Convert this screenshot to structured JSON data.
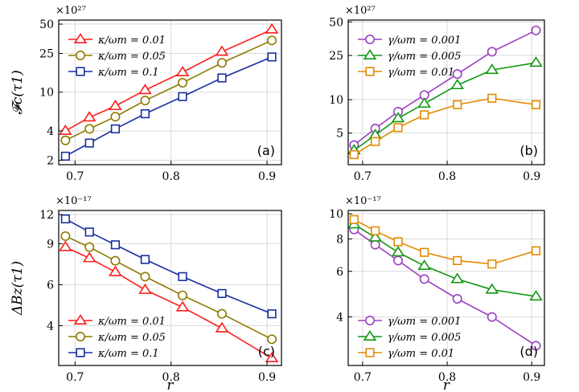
{
  "chart_data": [
    {
      "panel": "(a)",
      "type": "line",
      "yscale": "log",
      "x": [
        0.69,
        0.715,
        0.742,
        0.773,
        0.812,
        0.853,
        0.905
      ],
      "xticks": [
        "0.7",
        "0.8",
        "0.9"
      ],
      "xtick_values": [
        0.7,
        0.8,
        0.9
      ],
      "xlim": [
        0.683,
        0.915
      ],
      "ylim": [
        1.8,
        55
      ],
      "yticks": [
        "2",
        "4",
        "10",
        "25",
        "50"
      ],
      "ytick_values": [
        2,
        4,
        10,
        25,
        50
      ],
      "ylabel": "𝓕c(τ1)",
      "xlabel": "",
      "multiplier": "×10²⁷",
      "legend_position": "top-left",
      "series": [
        {
          "name": "κ/ωm = 0.01",
          "color": "#ff1a1a",
          "marker": "triangle",
          "values": [
            4.0,
            5.5,
            7.2,
            10.5,
            16.0,
            26.0,
            44.0
          ]
        },
        {
          "name": "κ/ωm = 0.05",
          "color": "#8c7a00",
          "marker": "circle",
          "values": [
            3.2,
            4.2,
            5.6,
            8.2,
            12.5,
            20.0,
            34.0
          ]
        },
        {
          "name": "κ/ωm = 0.1",
          "color": "#1a2ea0",
          "marker": "square",
          "values": [
            2.2,
            3.0,
            4.2,
            6.0,
            9.0,
            14.0,
            23.0
          ]
        }
      ],
      "tag": "(a)"
    },
    {
      "panel": "(b)",
      "type": "line",
      "yscale": "log",
      "x": [
        0.69,
        0.715,
        0.742,
        0.773,
        0.812,
        0.853,
        0.905
      ],
      "xticks": [
        "0.7",
        "0.8",
        "0.9"
      ],
      "xtick_values": [
        0.7,
        0.8,
        0.9
      ],
      "xlim": [
        0.683,
        0.915
      ],
      "ylim": [
        2.6,
        52
      ],
      "yticks": [
        "5",
        "10",
        "25",
        "50"
      ],
      "ytick_values": [
        5,
        10,
        25,
        50
      ],
      "ylabel": "",
      "xlabel": "",
      "multiplier": "×10²⁷",
      "legend_position": "top-left",
      "series": [
        {
          "name": "γ/ωm = 0.001",
          "color": "#9c3fbf",
          "marker": "circle",
          "values": [
            3.9,
            5.5,
            7.8,
            11.0,
            17.0,
            27.0,
            42.0
          ]
        },
        {
          "name": "γ/ωm = 0.005",
          "color": "#119911",
          "marker": "triangle",
          "values": [
            3.5,
            4.8,
            6.8,
            9.2,
            13.5,
            18.5,
            21.5
          ]
        },
        {
          "name": "γ/ωm = 0.01",
          "color": "#e38a00",
          "marker": "square",
          "values": [
            3.2,
            4.2,
            5.6,
            7.3,
            9.0,
            10.3,
            9.0
          ]
        }
      ],
      "tag": "(b)"
    },
    {
      "panel": "(c)",
      "type": "line",
      "yscale": "log",
      "x": [
        0.69,
        0.715,
        0.742,
        0.773,
        0.812,
        0.853,
        0.905
      ],
      "xticks": [
        "0.7",
        "0.8",
        "0.9"
      ],
      "xtick_values": [
        0.7,
        0.8,
        0.9
      ],
      "xlim": [
        0.683,
        0.915
      ],
      "ylim": [
        2.7,
        12.5
      ],
      "yticks": [
        "4",
        "6",
        "9",
        "12"
      ],
      "ytick_values": [
        4,
        6,
        9,
        12
      ],
      "ylabel": "ΔBz(τ1)",
      "xlabel": "r",
      "multiplier": "×10⁻¹⁷",
      "legend_position": "bottom-left",
      "series": [
        {
          "name": "κ/ωm = 0.01",
          "color": "#ff1a1a",
          "marker": "triangle",
          "values": [
            8.7,
            7.8,
            6.8,
            5.7,
            4.8,
            3.9,
            2.9
          ]
        },
        {
          "name": "κ/ωm = 0.05",
          "color": "#8c7a00",
          "marker": "circle",
          "values": [
            9.7,
            8.7,
            7.6,
            6.5,
            5.4,
            4.5,
            3.5
          ]
        },
        {
          "name": "κ/ωm = 0.1",
          "color": "#1a2ea0",
          "marker": "square",
          "values": [
            11.5,
            10.1,
            8.9,
            7.7,
            6.5,
            5.5,
            4.5
          ]
        }
      ],
      "tag": "(c)"
    },
    {
      "panel": "(d)",
      "type": "line",
      "yscale": "log",
      "x": [
        0.69,
        0.715,
        0.742,
        0.773,
        0.812,
        0.853,
        0.905
      ],
      "xticks": [
        "0.7",
        "0.8",
        "0.9"
      ],
      "xtick_values": [
        0.7,
        0.8,
        0.9
      ],
      "xlim": [
        0.683,
        0.915
      ],
      "ylim": [
        2.6,
        10.3
      ],
      "yticks": [
        "4",
        "6",
        "8",
        "10"
      ],
      "ytick_values": [
        4,
        6,
        8,
        10
      ],
      "ylabel": "",
      "xlabel": "r",
      "multiplier": "×10⁻¹⁷",
      "legend_position": "bottom-left",
      "series": [
        {
          "name": "γ/ωm = 0.001",
          "color": "#9c3fbf",
          "marker": "circle",
          "values": [
            8.7,
            7.6,
            6.6,
            5.6,
            4.7,
            4.0,
            3.1
          ]
        },
        {
          "name": "γ/ωm = 0.005",
          "color": "#119911",
          "marker": "triangle",
          "values": [
            9.1,
            8.1,
            7.1,
            6.3,
            5.6,
            5.1,
            4.8
          ]
        },
        {
          "name": "γ/ωm = 0.01",
          "color": "#e38a00",
          "marker": "square",
          "values": [
            9.5,
            8.6,
            7.8,
            7.1,
            6.6,
            6.4,
            7.2
          ]
        }
      ],
      "tag": "(d)"
    }
  ]
}
